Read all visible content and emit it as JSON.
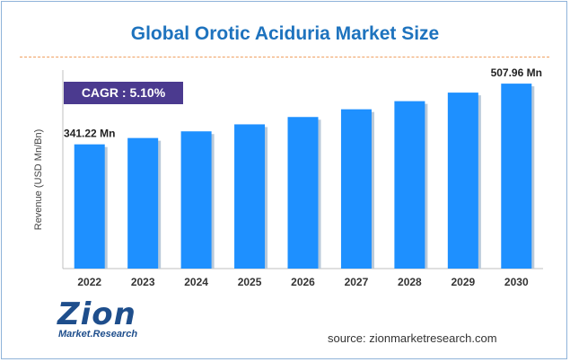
{
  "chart_data": {
    "type": "bar",
    "title": "Global Orotic Aciduria Market Size",
    "ylabel": "Revenue (USD Mn/Bn)",
    "xlabel": "",
    "categories": [
      "2022",
      "2023",
      "2024",
      "2025",
      "2026",
      "2027",
      "2028",
      "2029",
      "2030"
    ],
    "values": [
      341.22,
      358.6,
      376.9,
      396.1,
      416.3,
      437.5,
      459.8,
      483.3,
      507.96
    ],
    "ylim": [
      0,
      560
    ],
    "grid": false,
    "data_labels": [
      {
        "category": "2022",
        "text": "341.22 Mn"
      },
      {
        "category": "2030",
        "text": "507.96 Mn"
      }
    ],
    "bar_color": "#1e90ff"
  },
  "annotation": {
    "cagr": "CAGR : 5.10%"
  },
  "logo": {
    "word": "Zion",
    "sub": "Market.Research"
  },
  "source": "source: zionmarketresearch.com"
}
